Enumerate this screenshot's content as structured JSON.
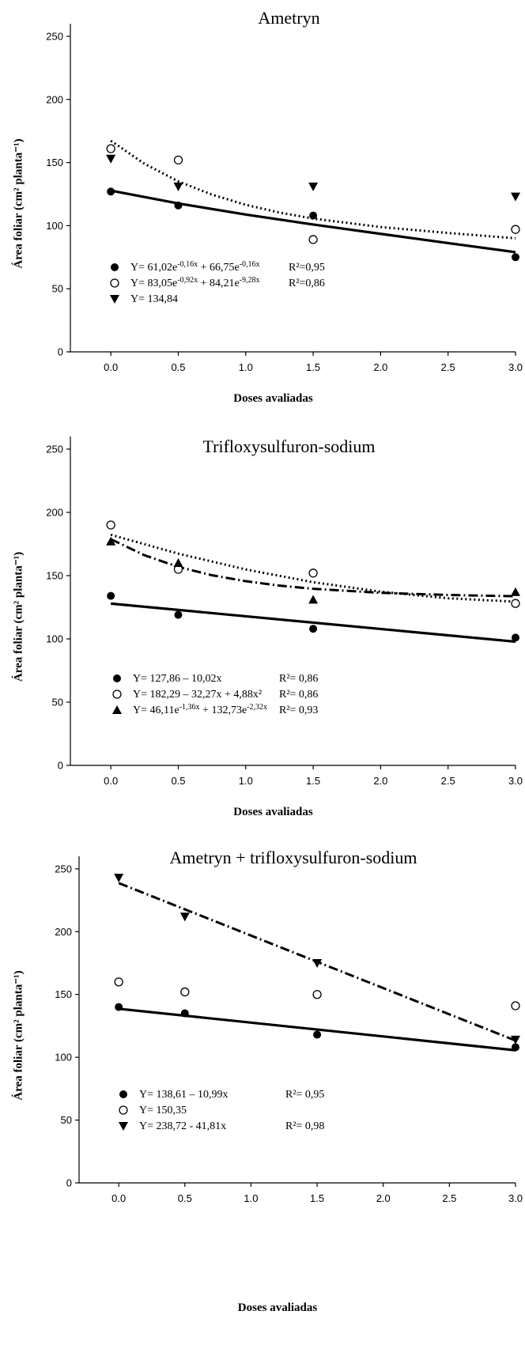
{
  "chart_data": [
    {
      "type": "scatter",
      "title": "Ametryn",
      "xlabel": "Doses avaliadas",
      "ylabel": "Área foliar (cm² planta⁻¹)",
      "xlim": [
        -0.3,
        3.0
      ],
      "ylim": [
        0,
        260
      ],
      "xticks": [
        "0.0",
        "0.5",
        "1.0",
        "1.5",
        "2.0",
        "2.5",
        "3.0"
      ],
      "yticks": [
        "0",
        "50",
        "100",
        "150",
        "200",
        "250"
      ],
      "series": [
        {
          "marker": "filled-circle",
          "x": [
            0,
            0.5,
            1.5,
            3.0
          ],
          "y": [
            127,
            116,
            108,
            75
          ],
          "fit": {
            "style": "solid",
            "x": [
              0,
              0.5,
              1.0,
              1.5,
              2.0,
              2.5,
              3.0
            ],
            "y": [
              127.8,
              117.6,
              108.8,
              100.9,
              93.5,
              86.2,
              79.0
            ]
          },
          "legend_eq": "Y= 61,02e",
          "legend_sup": "-0,16x",
          "legend_eq2": " + 66,75e",
          "legend_sup2": "-0,16x",
          "legend_r2": "R²=0,95"
        },
        {
          "marker": "open-circle",
          "x": [
            0,
            0.5,
            1.5,
            3.0
          ],
          "y": [
            161,
            152,
            89,
            97
          ],
          "fit": {
            "style": "dotted",
            "x": [
              0,
              0.25,
              0.5,
              0.75,
              1.0,
              1.25,
              1.5,
              2.0,
              2.5,
              3.0
            ],
            "y": [
              167.3,
              149.0,
              135.1,
              124.6,
              116.5,
              110.4,
              105.6,
              98.9,
              94.2,
              90.0
            ]
          },
          "legend_eq": "Y= 83,05e",
          "legend_sup": "-0,92x",
          "legend_eq2": " + 84,21e",
          "legend_sup2": "-9,28x",
          "legend_r2": "R²=0,86"
        },
        {
          "marker": "filled-triangle-down",
          "x": [
            0,
            0.5,
            1.5,
            3.0
          ],
          "y": [
            153,
            131,
            131,
            123
          ],
          "legend_eq": "Y= 134,84"
        }
      ]
    },
    {
      "type": "scatter",
      "title": "Trifloxysulfuron-sodium",
      "xlabel": "Doses avaliadas",
      "ylabel": "Área foliar (cm² planta⁻¹)",
      "xlim": [
        -0.3,
        3.0
      ],
      "ylim": [
        0,
        260
      ],
      "xticks": [
        "0.0",
        "0.5",
        "1.0",
        "1.5",
        "2.0",
        "2.5",
        "3.0"
      ],
      "yticks": [
        "0",
        "50",
        "100",
        "150",
        "200",
        "250"
      ],
      "series": [
        {
          "marker": "filled-circle",
          "x": [
            0,
            0.5,
            1.5,
            3.0
          ],
          "y": [
            134,
            119,
            108,
            101
          ],
          "fit": {
            "style": "solid",
            "x": [
              0,
              3.0
            ],
            "y": [
              127.9,
              97.8
            ]
          },
          "legend_eq": "Y= 127,86 – 10,02x",
          "legend_r2": "R²= 0,86"
        },
        {
          "marker": "open-circle",
          "x": [
            0,
            0.5,
            1.5,
            3.0
          ],
          "y": [
            190,
            155,
            152,
            128
          ],
          "fit": {
            "style": "dotted",
            "x": [
              0,
              0.5,
              1.0,
              1.5,
              2.0,
              2.5,
              3.0
            ],
            "y": [
              182.3,
              167.4,
              154.9,
              144.8,
              137.3,
              132.1,
              129.4
            ]
          },
          "legend_eq": "Y= 182,29 – 32,27x + 4,88x²",
          "legend_r2": "R²= 0,86"
        },
        {
          "marker": "filled-triangle-up",
          "x": [
            0,
            0.5,
            1.5,
            3.0
          ],
          "y": [
            177,
            160,
            131,
            137
          ],
          "fit": {
            "style": "dashdot",
            "x": [
              0,
              0.25,
              0.5,
              0.75,
              1.0,
              1.25,
              1.5,
              2.0,
              2.5,
              3.0
            ],
            "y": [
              178.8,
              166.1,
              156.9,
              150.3,
              145.6,
              142.1,
              139.6,
              136.4,
              134.7,
              133.7
            ]
          },
          "legend_eq": "Y= 46,11e",
          "legend_sup": "-1,36x",
          "legend_eq2": " + 132,73e",
          "legend_sup2": "-2,32x",
          "legend_r2": "R²= 0,93"
        }
      ]
    },
    {
      "type": "scatter",
      "title": "Ametryn + trifloxysulfuron-sodium",
      "xlabel": "Doses avaliadas",
      "ylabel": "Área foliar (cm² planta⁻¹)",
      "xlim": [
        -0.3,
        3.0
      ],
      "ylim": [
        0,
        260
      ],
      "xticks": [
        "0.0",
        "0.5",
        "1.0",
        "1.5",
        "2.0",
        "2.5",
        "3.0"
      ],
      "yticks": [
        "0",
        "50",
        "100",
        "150",
        "200",
        "250"
      ],
      "series": [
        {
          "marker": "filled-circle",
          "x": [
            0,
            0.5,
            1.5,
            3.0
          ],
          "y": [
            140,
            135,
            118,
            108
          ],
          "fit": {
            "style": "solid",
            "x": [
              0,
              3.0
            ],
            "y": [
              138.6,
              105.6
            ]
          },
          "legend_eq": "Y= 138,61 – 10,99x",
          "legend_r2": "R²= 0,95"
        },
        {
          "marker": "open-circle",
          "x": [
            0,
            0.5,
            1.5,
            3.0
          ],
          "y": [
            160,
            152,
            150,
            141
          ],
          "legend_eq": "Y= 150,35"
        },
        {
          "marker": "filled-triangle-down",
          "x": [
            0,
            0.5,
            1.5,
            3.0
          ],
          "y": [
            243,
            212,
            175,
            114
          ],
          "fit": {
            "style": "dashdot",
            "x": [
              0,
              3.0
            ],
            "y": [
              238.7,
              113.3
            ]
          },
          "legend_eq": "Y= 238,72 - 41,81x",
          "legend_r2": "R²= 0,98"
        }
      ]
    }
  ]
}
